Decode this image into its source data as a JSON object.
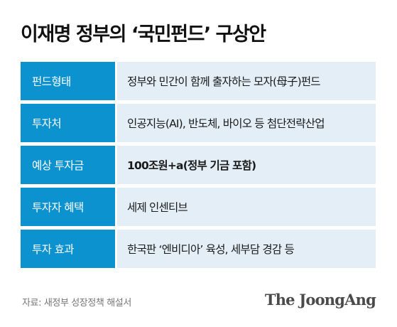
{
  "title": "이재명 정부의 ‘국민펀드’ 구상안",
  "rows": [
    {
      "label": "펀드형태",
      "value": "정부와 민간이 함께 출자하는 모자(母子)펀드"
    },
    {
      "label": "투자처",
      "value": "인공지능(AI), 반도체, 바이오 등 첨단전략산업"
    },
    {
      "label": "예상 투자금",
      "value": "100조원+a(정부 기금 포함)"
    },
    {
      "label": "투자자 혜택",
      "value": "세제 인센티브"
    },
    {
      "label": "투자 효과",
      "value": "한국판 ‘엔비디아’ 육성, 세부담 경감 등"
    }
  ],
  "source": "자료: 새정부 성장정책 해설서",
  "brand": "The JoongAng",
  "colors": {
    "label_bg": "#0c93cf",
    "value_bg": "#e3eef6"
  }
}
